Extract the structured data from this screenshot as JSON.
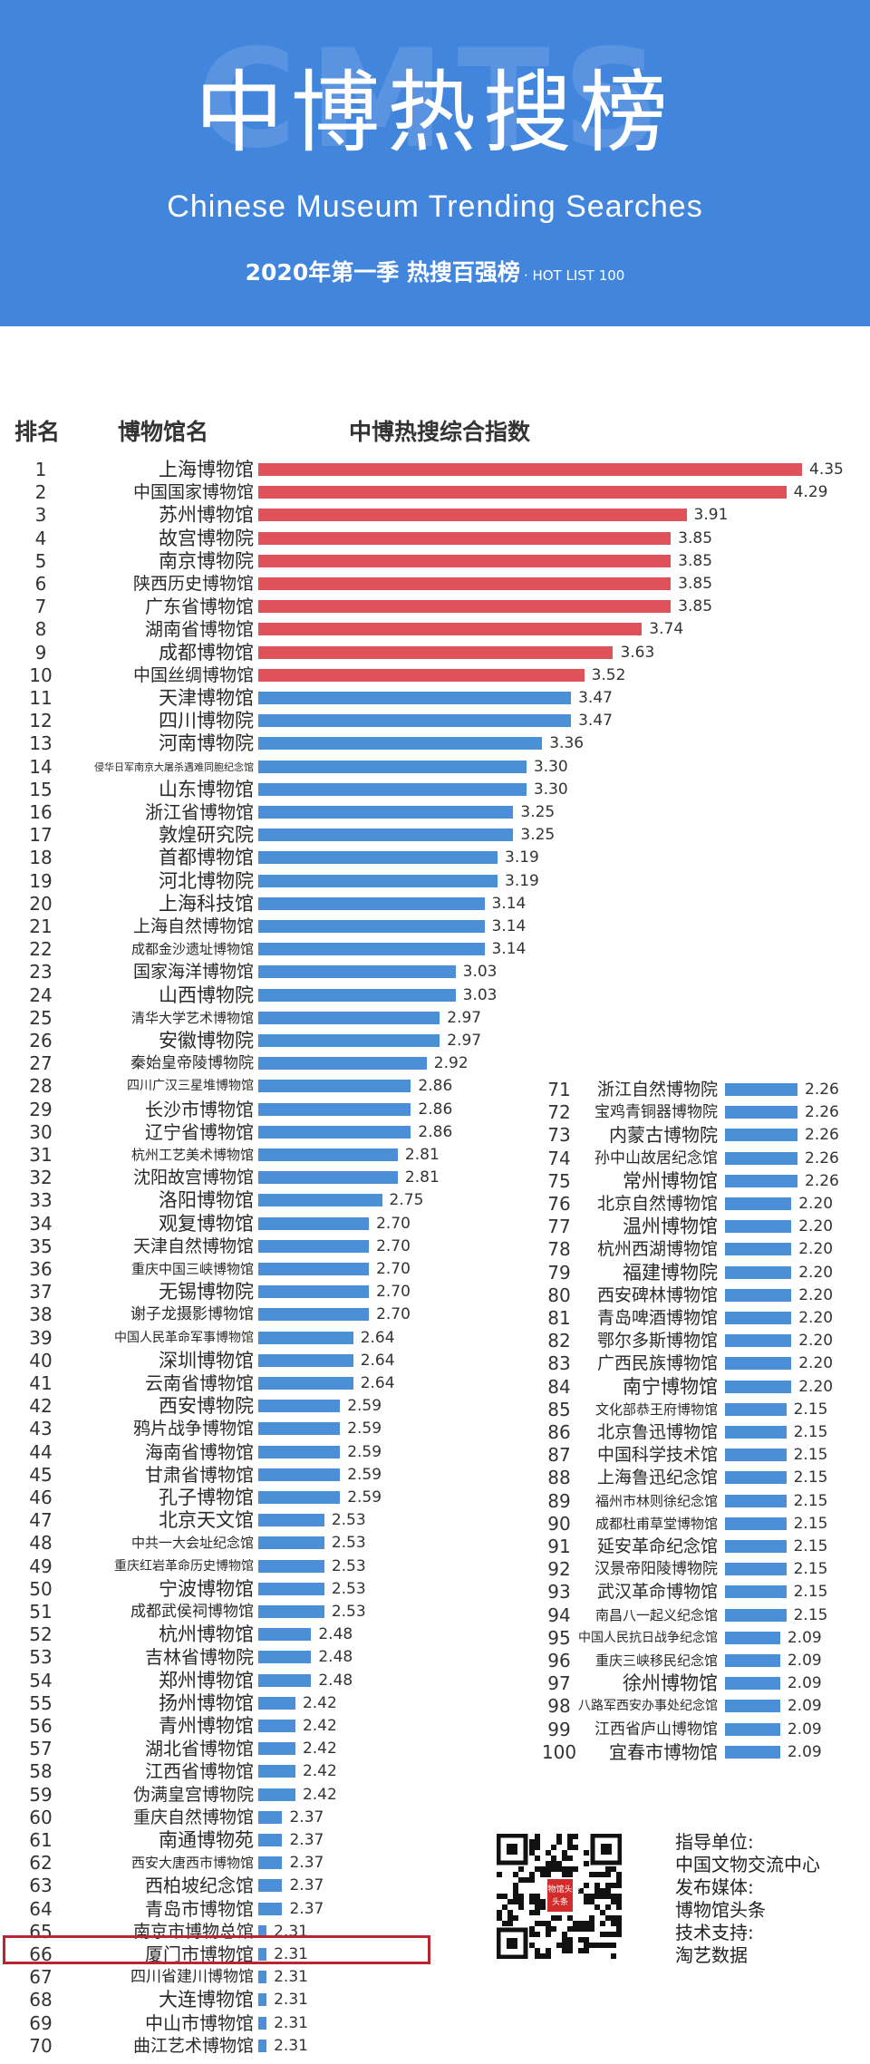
{
  "header": {
    "title_cn": "中博热搜榜",
    "watermark": "CMTS",
    "title_en": "Chinese Museum Trending Searches",
    "subtitle_main": "2020年第一季 热搜百强榜",
    "subtitle_small": "· HOT LIST 100",
    "bg_color": "#4285dc"
  },
  "columns": {
    "rank": "排名",
    "name": "博物馆名",
    "index": "中博热搜综合指数"
  },
  "colors": {
    "top_bar": "#e0525a",
    "bar": "#4a8fd8",
    "highlight": "#b8252e"
  },
  "chart_data": {
    "type": "bar",
    "orientation": "horizontal",
    "highlighted_rank": 66,
    "top_colored_count": 10,
    "items": [
      {
        "rank": "1",
        "name": "上海博物馆",
        "value": 4.35
      },
      {
        "rank": "2",
        "name": "中国国家博物馆",
        "value": 4.29
      },
      {
        "rank": "3",
        "name": "苏州博物馆",
        "value": 3.91
      },
      {
        "rank": "4",
        "name": "故宫博物院",
        "value": 3.85
      },
      {
        "rank": "5",
        "name": "南京博物院",
        "value": 3.85
      },
      {
        "rank": "6",
        "name": "陕西历史博物馆",
        "value": 3.85
      },
      {
        "rank": "7",
        "name": "广东省博物馆",
        "value": 3.85
      },
      {
        "rank": "8",
        "name": "湖南省博物馆",
        "value": 3.74
      },
      {
        "rank": "9",
        "name": "成都博物馆",
        "value": 3.63
      },
      {
        "rank": "10",
        "name": "中国丝绸博物馆",
        "value": 3.52
      },
      {
        "rank": "11",
        "name": "天津博物馆",
        "value": 3.47
      },
      {
        "rank": "12",
        "name": "四川博物院",
        "value": 3.47
      },
      {
        "rank": "13",
        "name": "河南博物院",
        "value": 3.36
      },
      {
        "rank": "14",
        "name": "侵华日军南京大屠杀遇难同胞纪念馆",
        "value": 3.3
      },
      {
        "rank": "15",
        "name": "山东博物馆",
        "value": 3.3
      },
      {
        "rank": "16",
        "name": "浙江省博物馆",
        "value": 3.25
      },
      {
        "rank": "17",
        "name": "敦煌研究院",
        "value": 3.25
      },
      {
        "rank": "18",
        "name": "首都博物馆",
        "value": 3.19
      },
      {
        "rank": "19",
        "name": "河北博物院",
        "value": 3.19
      },
      {
        "rank": "20",
        "name": "上海科技馆",
        "value": 3.14
      },
      {
        "rank": "21",
        "name": "上海自然博物馆",
        "value": 3.14
      },
      {
        "rank": "22",
        "name": "成都金沙遗址博物馆",
        "value": 3.14
      },
      {
        "rank": "23",
        "name": "国家海洋博物馆",
        "value": 3.03
      },
      {
        "rank": "24",
        "name": "山西博物院",
        "value": 3.03
      },
      {
        "rank": "25",
        "name": "清华大学艺术博物馆",
        "value": 2.97
      },
      {
        "rank": "26",
        "name": "安徽博物院",
        "value": 2.97
      },
      {
        "rank": "27",
        "name": "秦始皇帝陵博物院",
        "value": 2.92
      },
      {
        "rank": "28",
        "name": "四川广汉三星堆博物馆",
        "value": 2.86
      },
      {
        "rank": "29",
        "name": "长沙市博物馆",
        "value": 2.86
      },
      {
        "rank": "30",
        "name": "辽宁省博物馆",
        "value": 2.86
      },
      {
        "rank": "31",
        "name": "杭州工艺美术博物馆",
        "value": 2.81
      },
      {
        "rank": "32",
        "name": "沈阳故宫博物馆",
        "value": 2.81
      },
      {
        "rank": "33",
        "name": "洛阳博物馆",
        "value": 2.75
      },
      {
        "rank": "34",
        "name": "观复博物馆",
        "value": 2.7
      },
      {
        "rank": "35",
        "name": "天津自然博物馆",
        "value": 2.7
      },
      {
        "rank": "36",
        "name": "重庆中国三峡博物馆",
        "value": 2.7
      },
      {
        "rank": "37",
        "name": "无锡博物院",
        "value": 2.7
      },
      {
        "rank": "38",
        "name": "谢子龙摄影博物馆",
        "value": 2.7
      },
      {
        "rank": "39",
        "name": "中国人民革命军事博物馆",
        "value": 2.64
      },
      {
        "rank": "40",
        "name": "深圳博物馆",
        "value": 2.64
      },
      {
        "rank": "41",
        "name": "云南省博物馆",
        "value": 2.64
      },
      {
        "rank": "42",
        "name": "西安博物院",
        "value": 2.59
      },
      {
        "rank": "43",
        "name": "鸦片战争博物馆",
        "value": 2.59
      },
      {
        "rank": "44",
        "name": "海南省博物馆",
        "value": 2.59
      },
      {
        "rank": "45",
        "name": "甘肃省博物馆",
        "value": 2.59
      },
      {
        "rank": "46",
        "name": "孔子博物馆",
        "value": 2.59
      },
      {
        "rank": "47",
        "name": "北京天文馆",
        "value": 2.53
      },
      {
        "rank": "48",
        "name": "中共一大会址纪念馆",
        "value": 2.53
      },
      {
        "rank": "49",
        "name": "重庆红岩革命历史博物馆",
        "value": 2.53
      },
      {
        "rank": "50",
        "name": "宁波博物馆",
        "value": 2.53
      },
      {
        "rank": "51",
        "name": "成都武侯祠博物馆",
        "value": 2.53
      },
      {
        "rank": "52",
        "name": "杭州博物馆",
        "value": 2.48
      },
      {
        "rank": "53",
        "name": "吉林省博物院",
        "value": 2.48
      },
      {
        "rank": "54",
        "name": "郑州博物馆",
        "value": 2.48
      },
      {
        "rank": "55",
        "name": "扬州博物馆",
        "value": 2.42
      },
      {
        "rank": "56",
        "name": "青州博物馆",
        "value": 2.42
      },
      {
        "rank": "57",
        "name": "湖北省博物馆",
        "value": 2.42
      },
      {
        "rank": "58",
        "name": "江西省博物馆",
        "value": 2.42
      },
      {
        "rank": "59",
        "name": "伪满皇宫博物院",
        "value": 2.42
      },
      {
        "rank": "60",
        "name": "重庆自然博物馆",
        "value": 2.37
      },
      {
        "rank": "61",
        "name": "南通博物苑",
        "value": 2.37
      },
      {
        "rank": "62",
        "name": "西安大唐西市博物馆",
        "value": 2.37
      },
      {
        "rank": "63",
        "name": "西柏坡纪念馆",
        "value": 2.37
      },
      {
        "rank": "64",
        "name": "青岛市博物馆",
        "value": 2.37
      },
      {
        "rank": "65",
        "name": "南京市博物总馆",
        "value": 2.31
      },
      {
        "rank": "66",
        "name": "厦门市博物馆",
        "value": 2.31
      },
      {
        "rank": "67",
        "name": "四川省建川博物馆",
        "value": 2.31
      },
      {
        "rank": "68",
        "name": "大连博物馆",
        "value": 2.31
      },
      {
        "rank": "69",
        "name": "中山市博物馆",
        "value": 2.31
      },
      {
        "rank": "70",
        "name": "曲江艺术博物馆",
        "value": 2.31
      },
      {
        "rank": "71",
        "name": "浙江自然博物院",
        "value": 2.26
      },
      {
        "rank": "72",
        "name": "宝鸡青铜器博物院",
        "value": 2.26
      },
      {
        "rank": "73",
        "name": "内蒙古博物院",
        "value": 2.26
      },
      {
        "rank": "74",
        "name": "孙中山故居纪念馆",
        "value": 2.26
      },
      {
        "rank": "75",
        "name": "常州博物馆",
        "value": 2.26
      },
      {
        "rank": "76",
        "name": "北京自然博物馆",
        "value": 2.2
      },
      {
        "rank": "77",
        "name": "温州博物馆",
        "value": 2.2
      },
      {
        "rank": "78",
        "name": "杭州西湖博物馆",
        "value": 2.2
      },
      {
        "rank": "79",
        "name": "福建博物院",
        "value": 2.2
      },
      {
        "rank": "80",
        "name": "西安碑林博物馆",
        "value": 2.2
      },
      {
        "rank": "81",
        "name": "青岛啤酒博物馆",
        "value": 2.2
      },
      {
        "rank": "82",
        "name": "鄂尔多斯博物馆",
        "value": 2.2
      },
      {
        "rank": "83",
        "name": "广西民族博物馆",
        "value": 2.2
      },
      {
        "rank": "84",
        "name": "南宁博物馆",
        "value": 2.2
      },
      {
        "rank": "85",
        "name": "文化部恭王府博物馆",
        "value": 2.15
      },
      {
        "rank": "86",
        "name": "北京鲁迅博物馆",
        "value": 2.15
      },
      {
        "rank": "87",
        "name": "中国科学技术馆",
        "value": 2.15
      },
      {
        "rank": "88",
        "name": "上海鲁迅纪念馆",
        "value": 2.15
      },
      {
        "rank": "89",
        "name": "福州市林则徐纪念馆",
        "value": 2.15
      },
      {
        "rank": "90",
        "name": "成都杜甫草堂博物馆",
        "value": 2.15
      },
      {
        "rank": "91",
        "name": "延安革命纪念馆",
        "value": 2.15
      },
      {
        "rank": "92",
        "name": "汉景帝阳陵博物院",
        "value": 2.15
      },
      {
        "rank": "93",
        "name": "武汉革命博物馆",
        "value": 2.15
      },
      {
        "rank": "94",
        "name": "南昌八一起义纪念馆",
        "value": 2.15
      },
      {
        "rank": "95",
        "name": "中国人民抗日战争纪念馆",
        "value": 2.09
      },
      {
        "rank": "96",
        "name": "重庆三峡移民纪念馆",
        "value": 2.09
      },
      {
        "rank": "97",
        "name": "徐州博物馆",
        "value": 2.09
      },
      {
        "rank": "98",
        "name": "八路军西安办事处纪念馆",
        "value": 2.09
      },
      {
        "rank": "99",
        "name": "江西省庐山博物馆",
        "value": 2.09
      },
      {
        "rank": "100",
        "name": "宜春市博物馆",
        "value": 2.09
      }
    ]
  },
  "footer": {
    "qr_label": "博物馆头条",
    "qr_label_2": "头条",
    "guide_label": "指导单位:",
    "guide_value": "中国文物交流中心",
    "publish_label": "发布媒体:",
    "publish_value": "博物馆头条",
    "tech_label": "技术支持:",
    "tech_value": "淘艺数据"
  }
}
